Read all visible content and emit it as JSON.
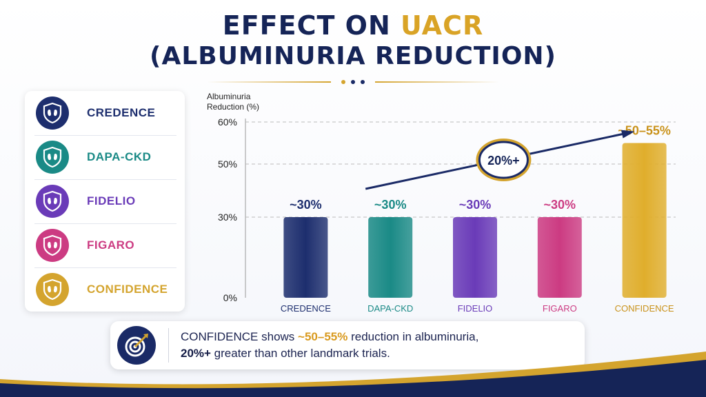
{
  "title": {
    "line1_prefix": "EFFECT ON ",
    "line1_accent": "UACR",
    "line2": "(ALBUMINURIA REDUCTION)"
  },
  "colors": {
    "navy": "#1a2a66",
    "teal": "#1a8a86",
    "purple": "#6a3bb8",
    "pink": "#cc3b82",
    "gold": "#d4a42e"
  },
  "legend": {
    "items": [
      {
        "label": "CREDENCE",
        "color": "#1d2e6e",
        "icon": "kidney-shield-icon"
      },
      {
        "label": "DAPA-CKD",
        "color": "#1a8a86",
        "icon": "kidney-shield-icon"
      },
      {
        "label": "FIDELIO",
        "color": "#6a3bb8",
        "icon": "kidney-shield-icon"
      },
      {
        "label": "FIGARO",
        "color": "#cc3b82",
        "icon": "kidney-shield-icon"
      },
      {
        "label": "CONFIDENCE",
        "color": "#d4a42e",
        "icon": "kidney-shield-icon"
      }
    ]
  },
  "chart_data": {
    "type": "bar",
    "ylabel_line1": "Albuminuria",
    "ylabel_line2": "Reduction (%)",
    "yticks": [
      "0%",
      "30%",
      "50%",
      "60%"
    ],
    "ytick_values": [
      0,
      30,
      50,
      60
    ],
    "ylim": [
      0,
      60
    ],
    "categories": [
      "CREDENCE",
      "DAPA-CKD",
      "FIDELIO",
      "FIGARO",
      "CONFIDENCE"
    ],
    "values": [
      30,
      30,
      30,
      30,
      55
    ],
    "data_labels": [
      "~30%",
      "~30%",
      "~30%",
      "~30%",
      "~50–55%"
    ],
    "bar_colors": [
      "#1d2e6e",
      "#1a8a86",
      "#6a3bb8",
      "#cc3b82",
      "#e0ae2c"
    ],
    "label_colors": [
      "#1d2e6e",
      "#1a8a86",
      "#6a3bb8",
      "#cc3b82",
      "#c9921a"
    ],
    "annotation": "20%+",
    "grid": true
  },
  "callout": {
    "icon": "target-icon",
    "line1_prefix": "CONFIDENCE shows ",
    "line1_highlight": "~50–55%",
    "line1_suffix": " reduction in albuminuria,",
    "line2_bold": "20%+",
    "line2_suffix": " greater than other landmark trials."
  }
}
